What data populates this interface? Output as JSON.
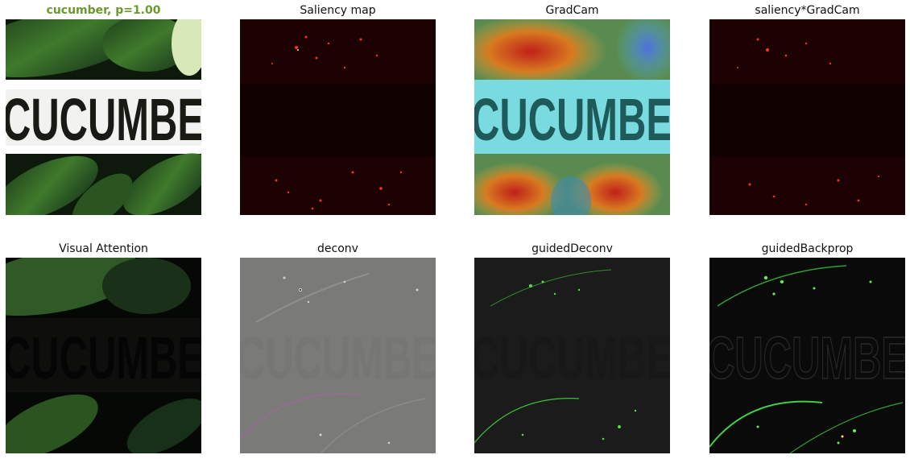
{
  "figure": {
    "panels": [
      {
        "title": "cucumber, p=1.00",
        "kind": "original",
        "title_color": "#6a9a2c",
        "text_overlay": "CUCUMBE"
      },
      {
        "title": "Saliency map",
        "kind": "saliency"
      },
      {
        "title": "GradCam",
        "kind": "gradcam",
        "text_overlay": "CUCUMBE"
      },
      {
        "title": "saliency*GradCam",
        "kind": "saliency"
      },
      {
        "title": "Visual Attention",
        "kind": "attention",
        "text_overlay": "CUCUMBE"
      },
      {
        "title": "deconv",
        "kind": "deconv",
        "text_overlay": "CUCUMBE"
      },
      {
        "title": "guidedDeconv",
        "kind": "guided",
        "text_overlay": "CUCUMBE"
      },
      {
        "title": "guidedBackprop",
        "kind": "guidedbp",
        "text_overlay": "CUCUMBE"
      }
    ]
  }
}
